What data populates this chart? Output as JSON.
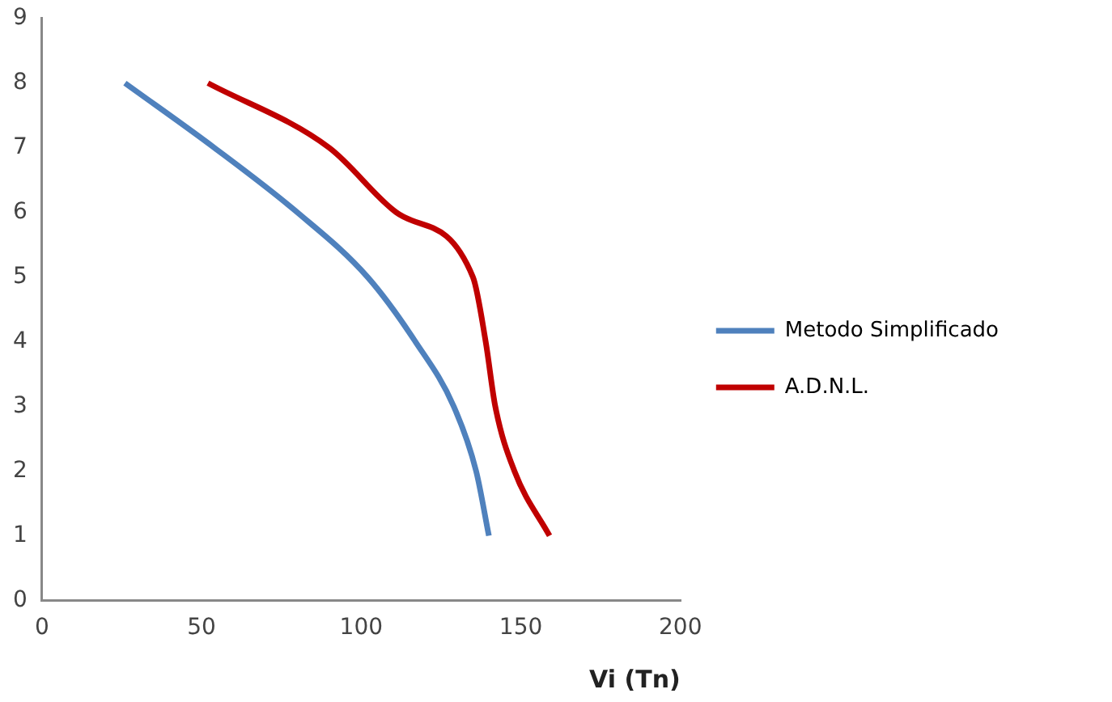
{
  "chart_data": {
    "type": "line",
    "xlabel": "Vi (Tn)",
    "xlim": [
      0,
      200
    ],
    "xticks": [
      0,
      50,
      100,
      150,
      200
    ],
    "ylim": [
      0,
      9
    ],
    "yticks": [
      0,
      1,
      2,
      3,
      4,
      5,
      6,
      7,
      8,
      9
    ],
    "grid": false,
    "legend": "right",
    "marker": "none",
    "line_style": "solid",
    "series": [
      {
        "name": "Metodo Simplificado",
        "color": "#4f81bd",
        "x": [
          26,
          54,
          80,
          102,
          117,
          129,
          136,
          140
        ],
        "values": [
          8,
          7,
          6,
          5,
          4,
          3,
          2,
          1
        ]
      },
      {
        "name": "A.D.N.L.",
        "color": "#c00000",
        "x": [
          52,
          90,
          111,
          135,
          139,
          142,
          148,
          159
        ],
        "values": [
          8,
          7,
          6,
          5,
          4,
          3,
          2,
          1
        ]
      }
    ]
  }
}
